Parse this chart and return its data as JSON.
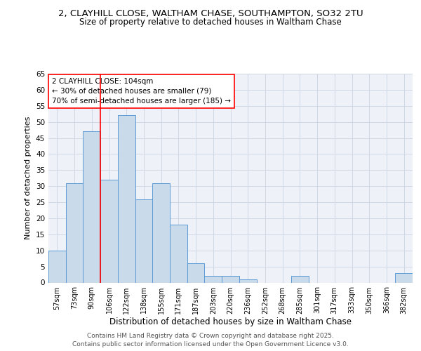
{
  "title_line1": "2, CLAYHILL CLOSE, WALTHAM CHASE, SOUTHAMPTON, SO32 2TU",
  "title_line2": "Size of property relative to detached houses in Waltham Chase",
  "xlabel": "Distribution of detached houses by size in Waltham Chase",
  "ylabel": "Number of detached properties",
  "categories": [
    "57sqm",
    "73sqm",
    "90sqm",
    "106sqm",
    "122sqm",
    "138sqm",
    "155sqm",
    "171sqm",
    "187sqm",
    "203sqm",
    "220sqm",
    "236sqm",
    "252sqm",
    "268sqm",
    "285sqm",
    "301sqm",
    "317sqm",
    "333sqm",
    "350sqm",
    "366sqm",
    "382sqm"
  ],
  "values": [
    10,
    31,
    47,
    32,
    52,
    26,
    31,
    18,
    6,
    2,
    2,
    1,
    0,
    0,
    2,
    0,
    0,
    0,
    0,
    0,
    3
  ],
  "bar_color": "#c9daea",
  "bar_edge_color": "#5b9bd5",
  "grid_color": "#d0d8e4",
  "bg_color": "#eef2f8",
  "ylim": [
    0,
    65
  ],
  "yticks": [
    0,
    5,
    10,
    15,
    20,
    25,
    30,
    35,
    40,
    45,
    50,
    55,
    60,
    65
  ],
  "property_line_x": 2.5,
  "annotation_text": "2 CLAYHILL CLOSE: 104sqm\n← 30% of detached houses are smaller (79)\n70% of semi-detached houses are larger (185) →",
  "footer_text": "Contains HM Land Registry data © Crown copyright and database right 2025.\nContains public sector information licensed under the Open Government Licence v3.0.",
  "title_fontsize": 9.5,
  "subtitle_fontsize": 8.5,
  "footer_fontsize": 6.5,
  "ylabel_fontsize": 8,
  "xlabel_fontsize": 8.5
}
